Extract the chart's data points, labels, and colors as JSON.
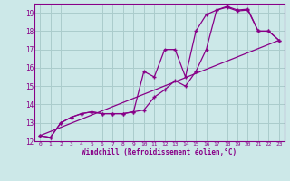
{
  "xlabel": "Windchill (Refroidissement éolien,°C)",
  "bg_color": "#cce8e8",
  "grid_color": "#aacccc",
  "line_color": "#880088",
  "xlim": [
    -0.5,
    23.5
  ],
  "ylim": [
    12.0,
    19.5
  ],
  "xticks": [
    0,
    1,
    2,
    3,
    4,
    5,
    6,
    7,
    8,
    9,
    10,
    11,
    12,
    13,
    14,
    15,
    16,
    17,
    18,
    19,
    20,
    21,
    22,
    23
  ],
  "yticks": [
    12,
    13,
    14,
    15,
    16,
    17,
    18,
    19
  ],
  "line1_x": [
    0,
    1,
    2,
    3,
    4,
    5,
    6,
    7,
    8,
    9,
    10,
    11,
    12,
    13,
    14,
    15,
    16,
    17,
    18,
    19,
    20,
    21,
    22,
    23
  ],
  "line1_y": [
    12.3,
    12.2,
    13.0,
    13.3,
    13.5,
    13.6,
    13.5,
    13.5,
    13.5,
    13.6,
    13.7,
    14.4,
    14.8,
    15.3,
    15.0,
    15.8,
    17.0,
    19.15,
    19.3,
    19.1,
    19.15,
    18.0,
    18.0,
    17.5
  ],
  "line2_x": [
    0,
    1,
    2,
    3,
    4,
    5,
    6,
    7,
    8,
    9,
    10,
    11,
    12,
    13,
    14,
    15,
    16,
    17,
    18,
    19,
    20,
    21,
    22,
    23
  ],
  "line2_y": [
    12.3,
    12.2,
    13.0,
    13.3,
    13.5,
    13.6,
    13.5,
    13.5,
    13.5,
    13.6,
    15.8,
    15.5,
    17.0,
    17.0,
    15.5,
    18.0,
    18.9,
    19.15,
    19.35,
    19.15,
    19.2,
    18.0,
    18.0,
    17.5
  ],
  "line3_x": [
    0,
    23
  ],
  "line3_y": [
    12.3,
    17.5
  ]
}
